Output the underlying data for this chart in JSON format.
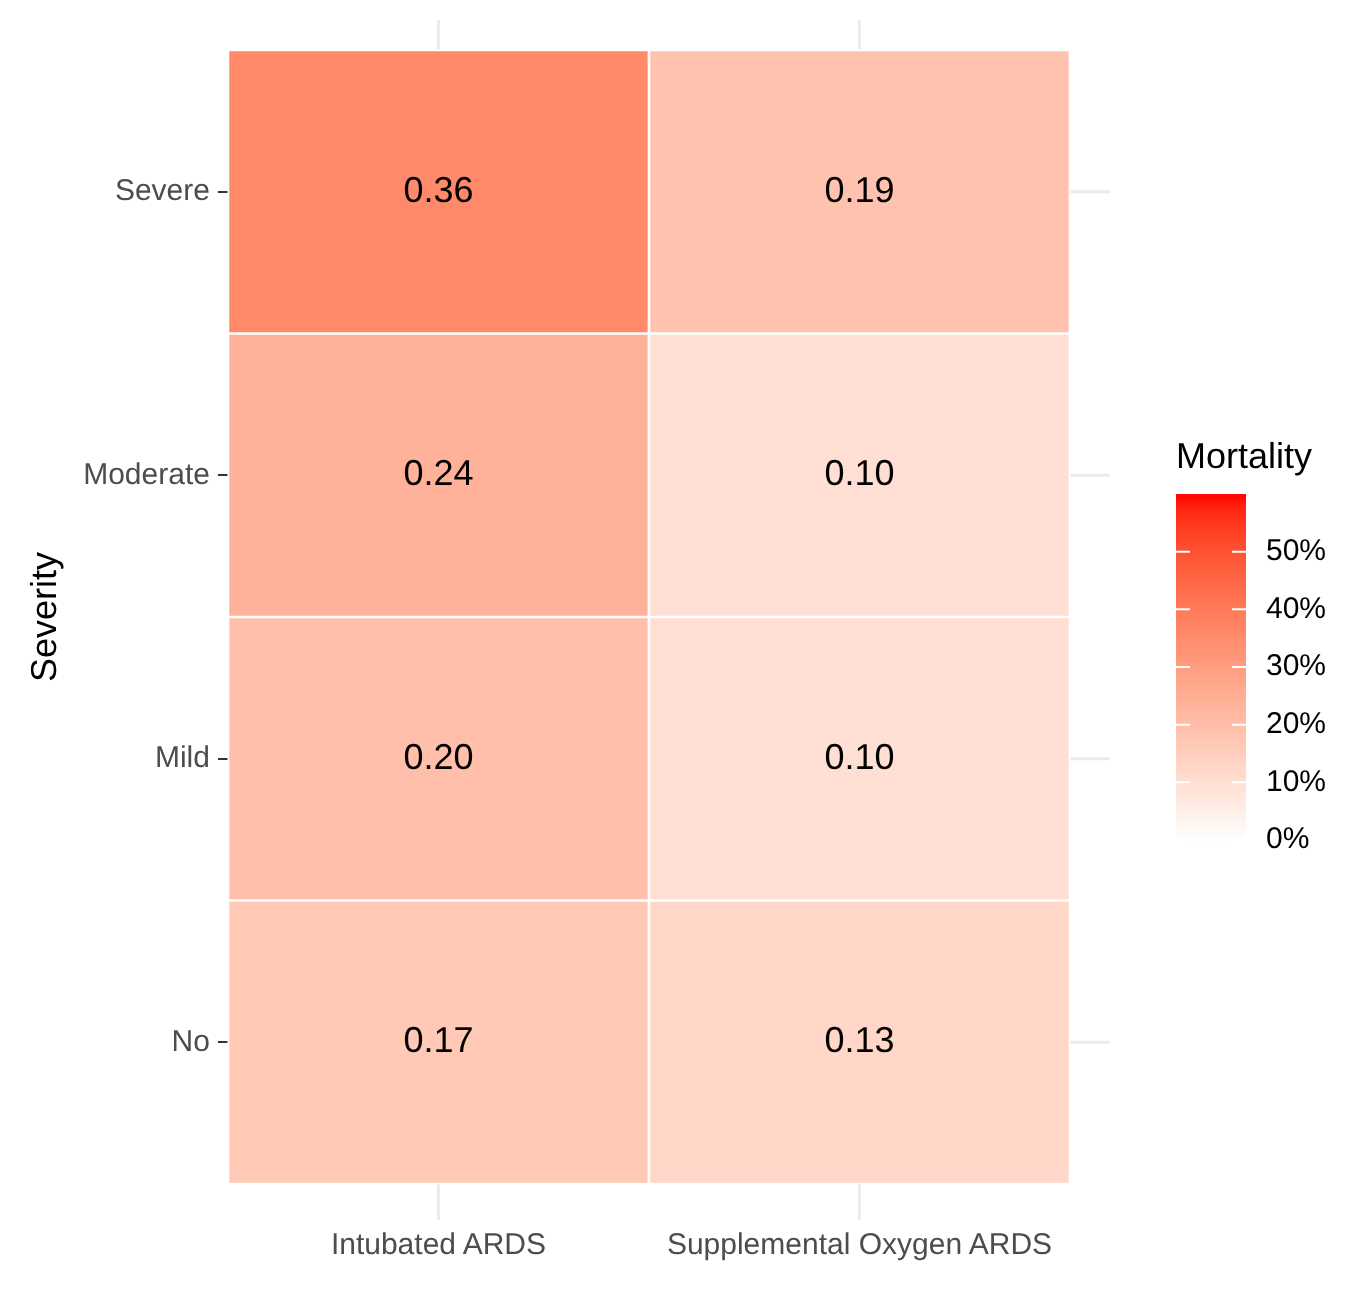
{
  "chart_data": {
    "type": "heatmap",
    "ylabel": "Severity",
    "clabel": "Mortality",
    "categories": [
      "Intubated ARDS",
      "Supplemental Oxygen ARDS"
    ],
    "y_categories": [
      "Severe",
      "Moderate",
      "Mild",
      "No"
    ],
    "cells": [
      [
        0.36,
        0.19
      ],
      [
        0.24,
        0.1
      ],
      [
        0.2,
        0.1
      ],
      [
        0.17,
        0.13
      ]
    ],
    "cell_labels": [
      [
        "0.36",
        "0.19"
      ],
      [
        "0.24",
        "0.10"
      ],
      [
        "0.20",
        "0.10"
      ],
      [
        "0.17",
        "0.13"
      ]
    ],
    "clim": [
      0,
      0.6
    ],
    "cticks": [
      {
        "value": 0,
        "label": "0%"
      },
      {
        "value": 0.1,
        "label": "10%"
      },
      {
        "value": 0.2,
        "label": "20%"
      },
      {
        "value": 0.3,
        "label": "30%"
      },
      {
        "value": 0.4,
        "label": "40%"
      },
      {
        "value": 0.5,
        "label": "50%"
      }
    ],
    "grid": true
  }
}
